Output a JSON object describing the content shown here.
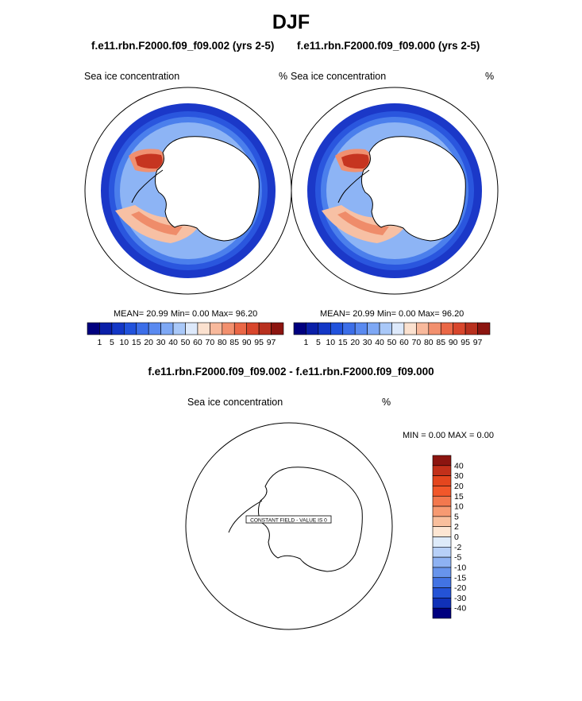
{
  "page": {
    "title": "DJF"
  },
  "panels": [
    {
      "title": "f.e11.rbn.F2000.f09_f09.002 (yrs 2-5)",
      "variable": "Sea ice concentration",
      "units": "%",
      "stats": "MEAN=  20.99  Min=   0.00  Max=  96.20"
    },
    {
      "title": "f.e11.rbn.F2000.f09_f09.000 (yrs 2-5)",
      "variable": "Sea ice concentration",
      "units": "%",
      "stats": "MEAN=  20.99  Min=   0.00  Max=  96.20"
    }
  ],
  "diff": {
    "title": "f.e11.rbn.F2000.f09_f09.002 - f.e11.rbn.F2000.f09_f09.000",
    "variable": "Sea ice concentration",
    "units": "%",
    "stats": "MIN =   0.00 MAX =   0.00",
    "annotation": "CONSTANT FIELD - VALUE IS 0"
  },
  "chart_data": [
    {
      "type": "heatmap",
      "title": "f.e11.rbn.F2000.f09_f09.002 (yrs 2-5)",
      "variable": "Sea ice concentration",
      "units": "%",
      "projection": "south polar stereographic",
      "stats": {
        "mean": 20.99,
        "min": 0.0,
        "max": 96.2
      },
      "colorbar": {
        "orientation": "horizontal",
        "levels": [
          1,
          5,
          10,
          15,
          20,
          30,
          40,
          50,
          60,
          70,
          80,
          85,
          90,
          95,
          97
        ],
        "colors": [
          "#00007f",
          "#0a1fa8",
          "#1337c6",
          "#2152dc",
          "#3c6ee8",
          "#5a8af0",
          "#7ea8f5",
          "#a9c8f8",
          "#dde9fb",
          "#fbe1cf",
          "#f8b99c",
          "#f2906e",
          "#ea6746",
          "#d8462c",
          "#b8301e",
          "#8c1510"
        ]
      }
    },
    {
      "type": "heatmap",
      "title": "f.e11.rbn.F2000.f09_f09.000 (yrs 2-5)",
      "variable": "Sea ice concentration",
      "units": "%",
      "projection": "south polar stereographic",
      "stats": {
        "mean": 20.99,
        "min": 0.0,
        "max": 96.2
      },
      "colorbar": {
        "orientation": "horizontal",
        "levels": [
          1,
          5,
          10,
          15,
          20,
          30,
          40,
          50,
          60,
          70,
          80,
          85,
          90,
          95,
          97
        ],
        "colors": [
          "#00007f",
          "#0a1fa8",
          "#1337c6",
          "#2152dc",
          "#3c6ee8",
          "#5a8af0",
          "#7ea8f5",
          "#a9c8f8",
          "#dde9fb",
          "#fbe1cf",
          "#f8b99c",
          "#f2906e",
          "#ea6746",
          "#d8462c",
          "#b8301e",
          "#8c1510"
        ]
      }
    },
    {
      "type": "heatmap",
      "title": "f.e11.rbn.F2000.f09_f09.002 - f.e11.rbn.F2000.f09_f09.000",
      "variable": "Sea ice concentration",
      "units": "%",
      "projection": "south polar stereographic",
      "stats": {
        "min": 0.0,
        "max": 0.0
      },
      "annotation": "CONSTANT FIELD - VALUE IS 0",
      "colorbar": {
        "orientation": "vertical",
        "levels": [
          40,
          30,
          20,
          15,
          10,
          5,
          2,
          0,
          -2,
          -5,
          -10,
          -15,
          -20,
          -30,
          -40
        ],
        "colors": [
          "#8c1510",
          "#c2301a",
          "#e4461e",
          "#f2572a",
          "#f3784e",
          "#f79a72",
          "#f9bf9d",
          "#fde6d3",
          "#deebfa",
          "#b7d0f8",
          "#8eb2f3",
          "#6794ec",
          "#4273e3",
          "#2453d6",
          "#1031b8",
          "#00007f"
        ]
      }
    }
  ]
}
